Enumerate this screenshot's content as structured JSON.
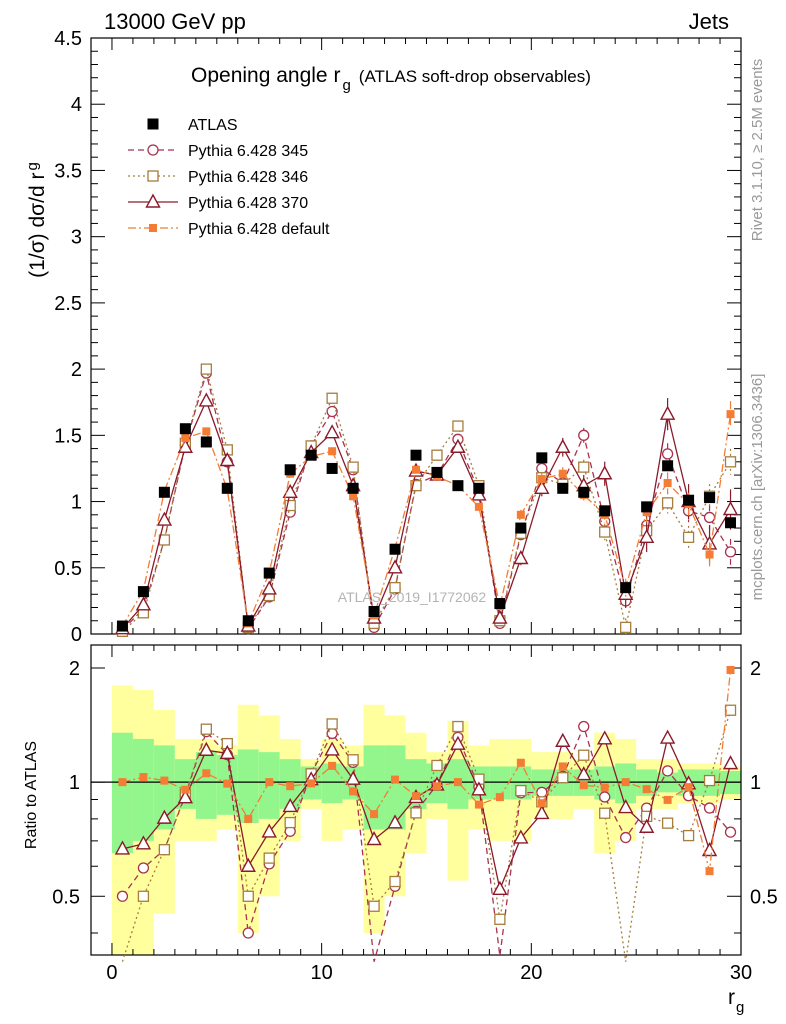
{
  "header": {
    "energy": "13000 GeV pp",
    "process": "Jets"
  },
  "side": {
    "rivet": "Rivet 3.1.10, ≥ 2.5M events",
    "mcplots": "mcplots.cern.ch [arXiv:1306.3436]"
  },
  "watermark": "ATLAS_2019_I1772062",
  "chart_data": {
    "type": "scatter",
    "title": "Opening angle r",
    "title_sub": "g",
    "title_extra": "(ATLAS soft-drop observables)",
    "ylabel": "(1/σ) dσ/d r",
    "ylabel_sub": "g",
    "xlabel": "r",
    "xlabel_sub": "g",
    "ratio_ylabel": "Ratio to ATLAS",
    "xlim": [
      -1,
      30
    ],
    "ylim": [
      0,
      4.5
    ],
    "ratio_ylim": [
      0.35,
      2.3
    ],
    "x_ticks": [
      "0",
      "10",
      "20",
      "30"
    ],
    "y_ticks": [
      "0",
      "0.5",
      "1",
      "1.5",
      "2",
      "2.5",
      "3",
      "3.5",
      "4",
      "4.5"
    ],
    "ratio_ticks": [
      "0.5",
      "1",
      "2"
    ],
    "x": [
      0.5,
      1.5,
      2.5,
      3.5,
      4.5,
      5.5,
      6.5,
      7.5,
      8.5,
      9.5,
      10.5,
      11.5,
      12.5,
      13.5,
      14.5,
      15.5,
      16.5,
      17.5,
      18.5,
      19.5,
      20.5,
      21.5,
      22.5,
      23.5,
      24.5,
      25.5,
      26.5,
      27.5,
      28.5,
      29.5
    ],
    "data": {
      "name": "ATLAS",
      "values": [
        0.06,
        0.32,
        1.07,
        1.55,
        1.45,
        1.1,
        0.1,
        0.46,
        1.24,
        1.35,
        1.25,
        1.1,
        0.17,
        0.64,
        1.35,
        1.22,
        1.12,
        1.1,
        0.23,
        0.8,
        1.33,
        1.1,
        1.07,
        0.93,
        0.35,
        0.96,
        1.27,
        1.01,
        1.03,
        0.84
      ],
      "band_green": [
        0.35,
        0.3,
        0.25,
        0.15,
        0.2,
        0.18,
        0.22,
        0.2,
        0.15,
        0.1,
        0.12,
        0.1,
        0.25,
        0.25,
        0.15,
        0.12,
        0.15,
        0.1,
        0.1,
        0.1,
        0.08,
        0.08,
        0.08,
        0.1,
        0.12,
        0.08,
        0.06,
        0.08,
        0.08,
        0.07
      ],
      "band_yellow": [
        0.8,
        0.75,
        0.55,
        0.3,
        0.3,
        0.25,
        0.6,
        0.5,
        0.3,
        0.15,
        0.3,
        0.25,
        0.6,
        0.5,
        0.35,
        0.2,
        0.45,
        0.25,
        0.3,
        0.3,
        0.2,
        0.2,
        0.15,
        0.35,
        0.3,
        0.15,
        0.15,
        0.12,
        0.12,
        0.1
      ]
    },
    "series": [
      {
        "name": "Pythia 6.428 345",
        "color": "#a8324f",
        "marker": "circle",
        "dash": "6,4",
        "values": [
          0.03,
          0.19,
          0.71,
          1.43,
          1.97,
          1.3,
          0.04,
          0.28,
          0.92,
          1.42,
          1.68,
          1.24,
          0.05,
          0.34,
          1.13,
          1.2,
          1.47,
          1.07,
          0.08,
          0.75,
          1.25,
          1.14,
          1.5,
          0.85,
          0.25,
          0.82,
          1.36,
          0.93,
          0.88,
          0.62
        ]
      },
      {
        "name": "Pythia 6.428 346",
        "color": "#a67d3d",
        "marker": "square",
        "dash": "2,3",
        "values": [
          0.02,
          0.16,
          0.71,
          1.44,
          2.0,
          1.39,
          0.05,
          0.29,
          0.97,
          1.42,
          1.78,
          1.26,
          0.08,
          0.35,
          1.12,
          1.35,
          1.57,
          1.12,
          0.1,
          0.76,
          1.18,
          1.13,
          1.26,
          0.77,
          0.05,
          0.78,
          0.99,
          0.73,
          1.04,
          1.3
        ]
      },
      {
        "name": "Pythia 6.428 370",
        "color": "#8b1a2a",
        "marker": "triangle",
        "dash": "",
        "values": [
          0.04,
          0.22,
          0.86,
          1.41,
          1.76,
          1.31,
          0.06,
          0.34,
          1.07,
          1.37,
          1.52,
          1.12,
          0.12,
          0.5,
          1.23,
          1.2,
          1.41,
          1.05,
          0.12,
          0.57,
          1.1,
          1.41,
          1.12,
          1.21,
          0.3,
          0.73,
          1.66,
          1.0,
          0.68,
          0.94
        ]
      },
      {
        "name": "Pythia 6.428 default",
        "color": "#f47c34",
        "marker": "filled-square",
        "dash": "8,3,2,3",
        "values": [
          0.06,
          0.33,
          1.08,
          1.48,
          1.53,
          1.09,
          0.08,
          0.46,
          1.21,
          1.34,
          1.38,
          1.04,
          0.14,
          0.65,
          1.24,
          1.19,
          1.12,
          0.96,
          0.21,
          0.9,
          1.17,
          1.21,
          1.05,
          0.9,
          0.35,
          0.92,
          1.14,
          0.98,
          0.6,
          1.66
        ]
      }
    ]
  }
}
